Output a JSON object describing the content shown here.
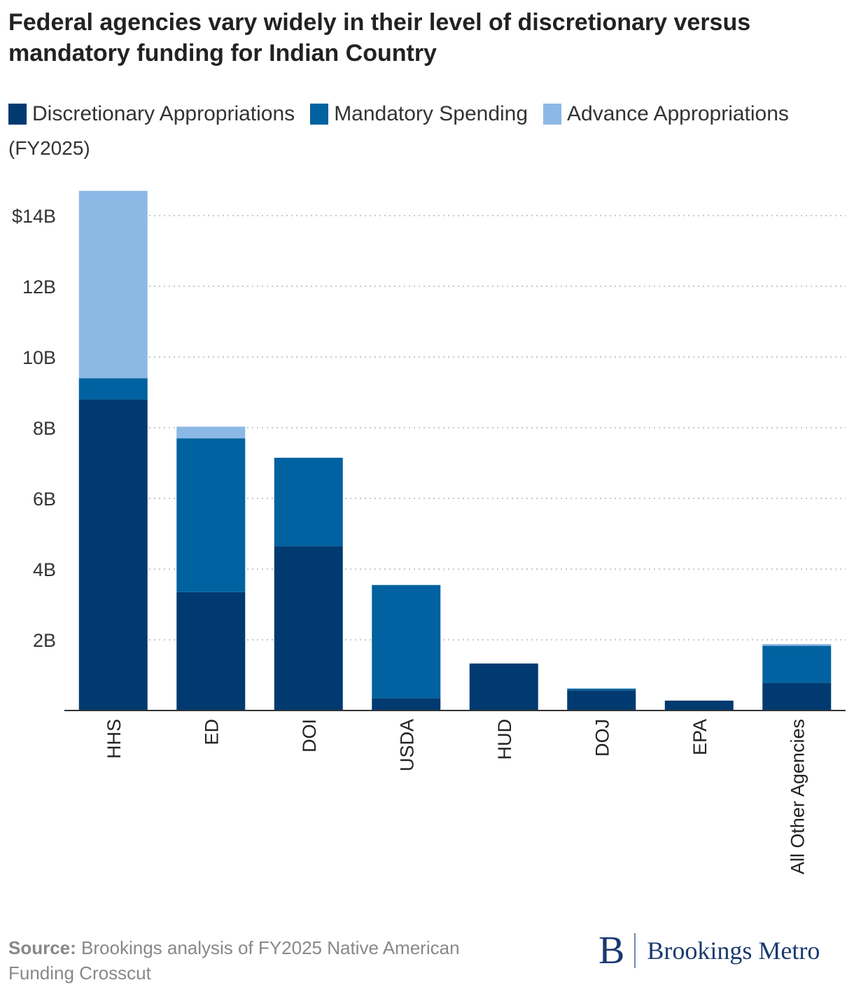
{
  "chart_data": {
    "type": "bar",
    "stacked": true,
    "title": "Federal agencies vary widely in their level of discretionary versus mandatory funding for Indian Country",
    "note": "(FY2025)",
    "categories": [
      "HHS",
      "ED",
      "DOI",
      "USDA",
      "HUD",
      "DOJ",
      "EPA",
      "All Other Agencies"
    ],
    "series": [
      {
        "name": "Discretionary Appropriations",
        "color": "#003a70",
        "values": [
          8.8,
          3.35,
          4.65,
          0.35,
          1.33,
          0.57,
          0.28,
          0.78
        ]
      },
      {
        "name": "Mandatory Spending",
        "color": "#0062a0",
        "values": [
          0.6,
          4.35,
          2.5,
          3.2,
          0.0,
          0.05,
          0.0,
          1.05
        ]
      },
      {
        "name": "Advance Appropriations",
        "color": "#8cb8e6",
        "values": [
          5.3,
          0.33,
          0.0,
          0.0,
          0.0,
          0.0,
          0.0,
          0.05
        ]
      }
    ],
    "y_ticks": [
      {
        "value": 2,
        "label": "2B"
      },
      {
        "value": 4,
        "label": "4B"
      },
      {
        "value": 6,
        "label": "6B"
      },
      {
        "value": 8,
        "label": "8B"
      },
      {
        "value": 10,
        "label": "10B"
      },
      {
        "value": 12,
        "label": "12B"
      },
      {
        "value": 14,
        "label": "$14B"
      }
    ],
    "ylim": [
      0,
      14.7
    ],
    "grid": "horizontal dotted",
    "legend": "top-left",
    "xlabel": "",
    "ylabel": ""
  },
  "footer": {
    "source_label": "Source:",
    "source_text": " Brookings analysis of FY2025 Native American Funding Crosscut"
  },
  "logo": {
    "mark": "B",
    "text": "Brookings Metro"
  }
}
